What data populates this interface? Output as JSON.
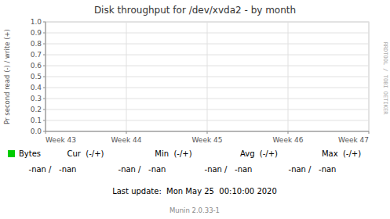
{
  "chart_data": {
    "type": "line",
    "title": "Disk throughput for /dev/xvda2 - by month",
    "y_label": "Pr second read (-) / write (+)",
    "categories": [
      "Week 43",
      "Week 44",
      "Week 45",
      "Week 46",
      "Week 47"
    ],
    "series": [
      {
        "name": "Bytes",
        "color": "#00cc00",
        "values": [
          null,
          null,
          null,
          null,
          null
        ]
      }
    ],
    "ylim": [
      0.0,
      1.0
    ],
    "yticks": [
      {
        "value": 0.0,
        "label": "0.0"
      },
      0.1,
      0.2,
      0.3,
      0.4,
      0.5,
      0.6,
      0.7,
      0.8,
      0.9,
      {
        "value": 1.0,
        "label": "1.0"
      }
    ],
    "grid": true,
    "legend": "bottom",
    "annotations": [
      "Cur  (-/+)",
      "Min  (-/+)",
      "Avg  (-/+)",
      "Max  (-/+)",
      "-nan /   -nan",
      "-nan /   -nan",
      "-nan /   -nan",
      "-nan /   -nan",
      "Last update:  Mon May 25  00:10:00 2020",
      "Munin 2.0.33-1",
      "RRDTOOL / TOBI OETIKER"
    ]
  }
}
